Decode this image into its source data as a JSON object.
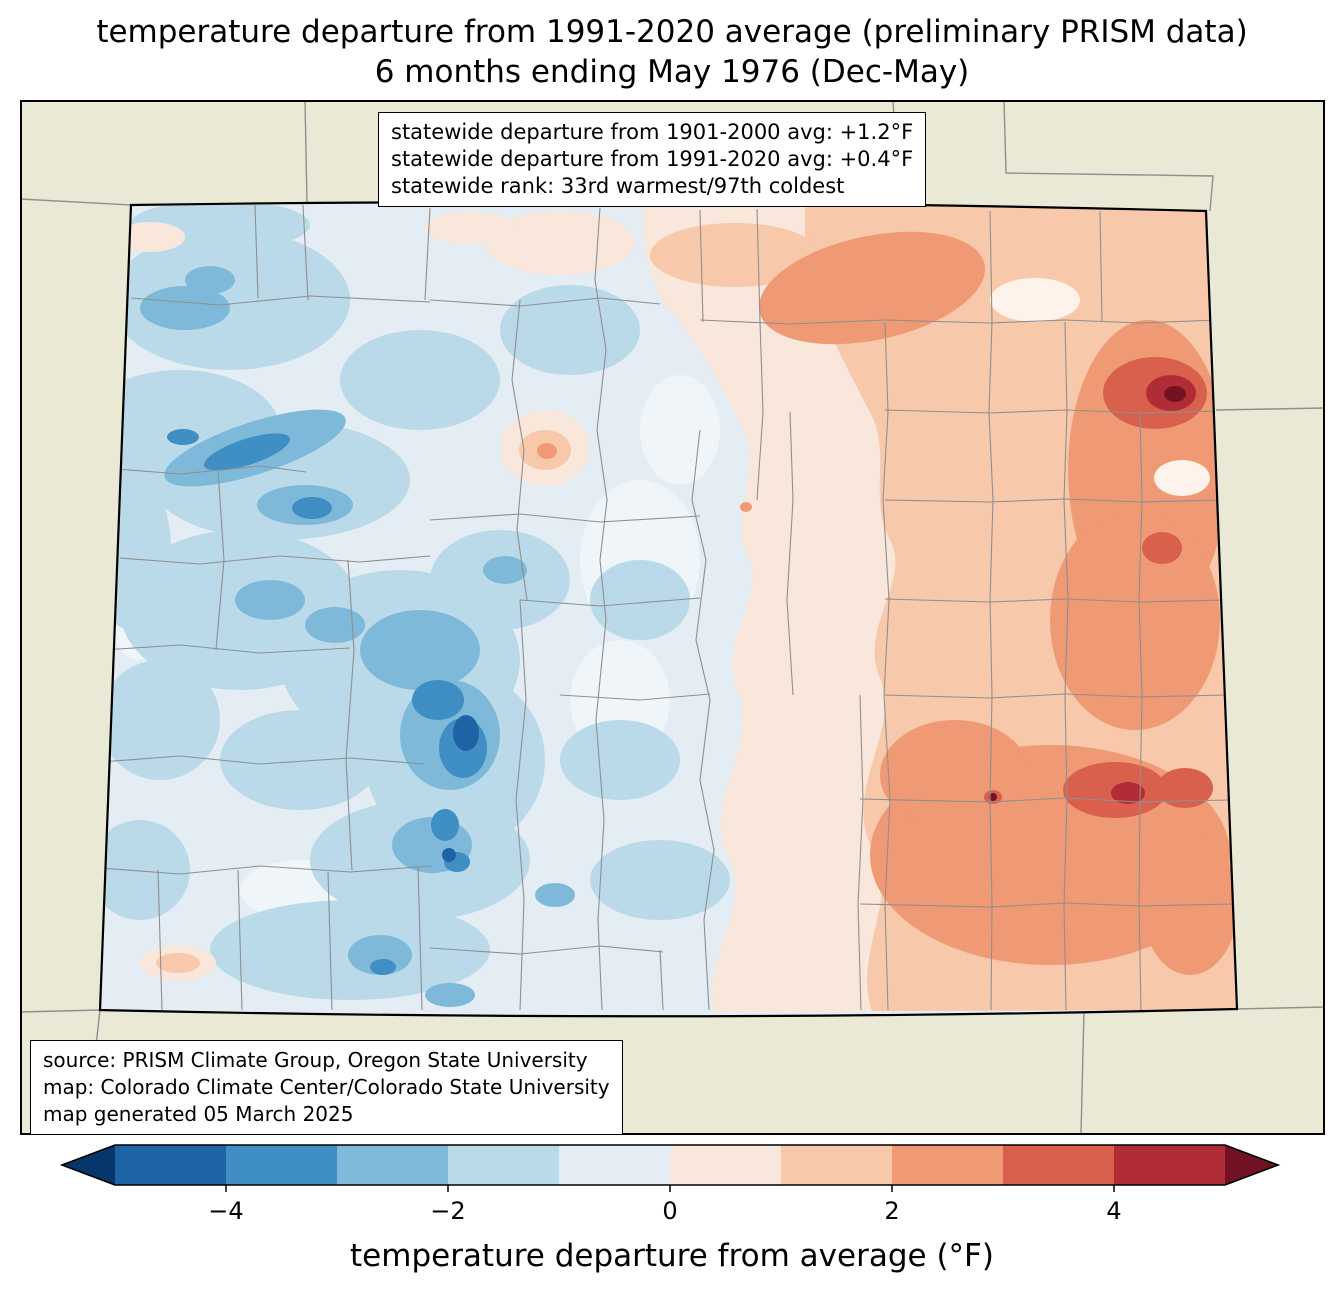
{
  "title": {
    "line1": "temperature departure from 1991-2020 average (preliminary PRISM data)",
    "line2": "6 months ending May 1976 (Dec-May)"
  },
  "stats_box": {
    "lines": [
      "statewide departure from 1901-2000 avg: +1.2°F",
      "statewide departure from 1991-2020 avg: +0.4°F",
      "statewide rank: 33rd warmest/97th coldest"
    ]
  },
  "source_box": {
    "lines": [
      "source: PRISM Climate Group, Oregon State University",
      "map: Colorado Climate Center/Colorado State University",
      "map generated 05 March 2025"
    ]
  },
  "colorbar": {
    "label": "temperature departure from average (°F)",
    "min": -5,
    "max": 5,
    "ticks": [
      {
        "value": -4,
        "label": "−4"
      },
      {
        "value": -2,
        "label": "−2"
      },
      {
        "value": 0,
        "label": "0"
      },
      {
        "value": 2,
        "label": "2"
      },
      {
        "value": 4,
        "label": "4"
      }
    ],
    "under_color": "#08366b",
    "over_color": "#731223",
    "segment_colors": [
      "#1e63a6",
      "#3f8ec4",
      "#7fb9da",
      "#badae9",
      "#e3edf3",
      "#f9e7db",
      "#f7c8a9",
      "#ef9a74",
      "#d8604c",
      "#b02d37"
    ]
  },
  "map": {
    "region": "Colorado",
    "land_color": "#e9e9d5",
    "county_line_color": "#8f8f8f",
    "state_line_color": "#000000"
  }
}
